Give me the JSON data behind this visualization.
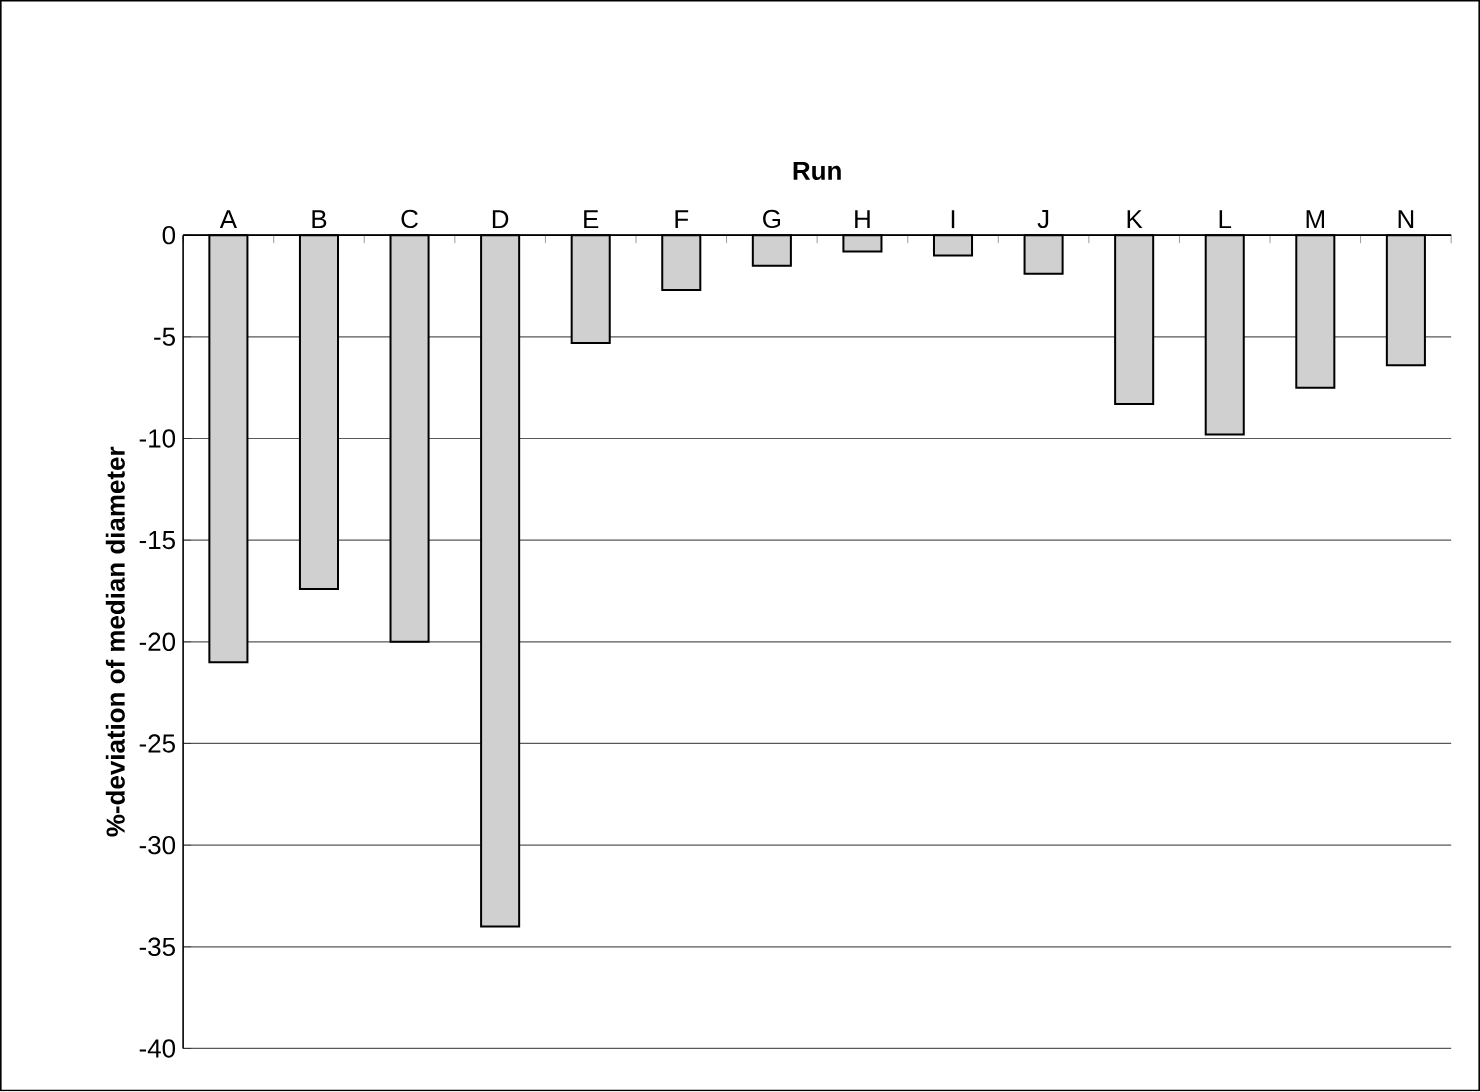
{
  "chart_data": {
    "type": "bar",
    "xlabel": "Run",
    "ylabel": "%-deviation of median diameter",
    "categories": [
      "A",
      "B",
      "C",
      "D",
      "E",
      "F",
      "G",
      "H",
      "I",
      "J",
      "K",
      "L",
      "M",
      "N"
    ],
    "values": [
      -21,
      -17.4,
      -20,
      -34,
      -5.3,
      -2.7,
      -1.5,
      -0.8,
      -1,
      -1.9,
      -8.3,
      -9.8,
      -7.5,
      -6.4
    ],
    "color": "#d0d0d0",
    "ylim": [
      -40,
      0
    ],
    "yticks": [
      -40,
      -35,
      -30,
      -25,
      -20,
      -15,
      -10,
      -5,
      0
    ],
    "grid": "y"
  }
}
